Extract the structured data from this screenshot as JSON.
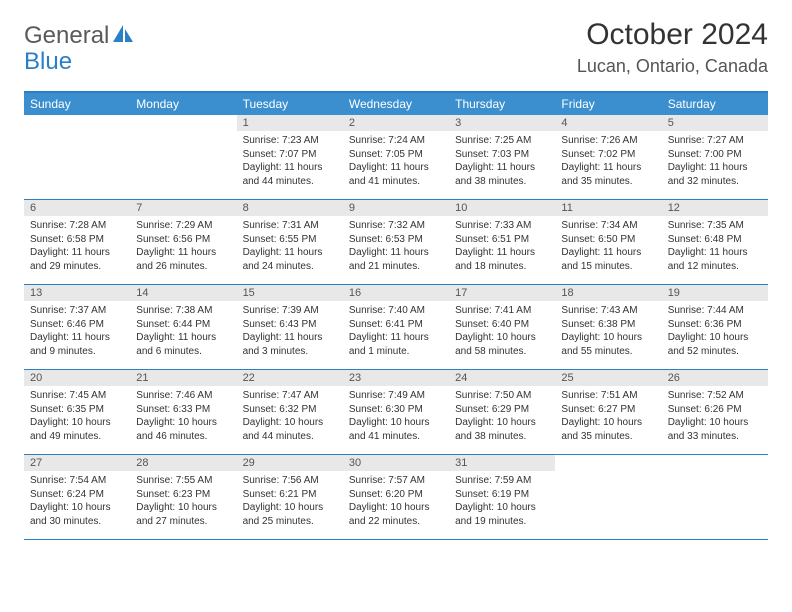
{
  "logo": {
    "text1": "General",
    "text2": "Blue"
  },
  "title": "October 2024",
  "location": "Lucan, Ontario, Canada",
  "colors": {
    "header_bg": "#3b8fcf",
    "border": "#2a7fc7",
    "daynum_bg": "#e8e8e8",
    "text": "#333333"
  },
  "day_headers": [
    "Sunday",
    "Monday",
    "Tuesday",
    "Wednesday",
    "Thursday",
    "Friday",
    "Saturday"
  ],
  "weeks": [
    [
      null,
      null,
      {
        "n": "1",
        "sr": "Sunrise: 7:23 AM",
        "ss": "Sunset: 7:07 PM",
        "d1": "Daylight: 11 hours",
        "d2": "and 44 minutes."
      },
      {
        "n": "2",
        "sr": "Sunrise: 7:24 AM",
        "ss": "Sunset: 7:05 PM",
        "d1": "Daylight: 11 hours",
        "d2": "and 41 minutes."
      },
      {
        "n": "3",
        "sr": "Sunrise: 7:25 AM",
        "ss": "Sunset: 7:03 PM",
        "d1": "Daylight: 11 hours",
        "d2": "and 38 minutes."
      },
      {
        "n": "4",
        "sr": "Sunrise: 7:26 AM",
        "ss": "Sunset: 7:02 PM",
        "d1": "Daylight: 11 hours",
        "d2": "and 35 minutes."
      },
      {
        "n": "5",
        "sr": "Sunrise: 7:27 AM",
        "ss": "Sunset: 7:00 PM",
        "d1": "Daylight: 11 hours",
        "d2": "and 32 minutes."
      }
    ],
    [
      {
        "n": "6",
        "sr": "Sunrise: 7:28 AM",
        "ss": "Sunset: 6:58 PM",
        "d1": "Daylight: 11 hours",
        "d2": "and 29 minutes."
      },
      {
        "n": "7",
        "sr": "Sunrise: 7:29 AM",
        "ss": "Sunset: 6:56 PM",
        "d1": "Daylight: 11 hours",
        "d2": "and 26 minutes."
      },
      {
        "n": "8",
        "sr": "Sunrise: 7:31 AM",
        "ss": "Sunset: 6:55 PM",
        "d1": "Daylight: 11 hours",
        "d2": "and 24 minutes."
      },
      {
        "n": "9",
        "sr": "Sunrise: 7:32 AM",
        "ss": "Sunset: 6:53 PM",
        "d1": "Daylight: 11 hours",
        "d2": "and 21 minutes."
      },
      {
        "n": "10",
        "sr": "Sunrise: 7:33 AM",
        "ss": "Sunset: 6:51 PM",
        "d1": "Daylight: 11 hours",
        "d2": "and 18 minutes."
      },
      {
        "n": "11",
        "sr": "Sunrise: 7:34 AM",
        "ss": "Sunset: 6:50 PM",
        "d1": "Daylight: 11 hours",
        "d2": "and 15 minutes."
      },
      {
        "n": "12",
        "sr": "Sunrise: 7:35 AM",
        "ss": "Sunset: 6:48 PM",
        "d1": "Daylight: 11 hours",
        "d2": "and 12 minutes."
      }
    ],
    [
      {
        "n": "13",
        "sr": "Sunrise: 7:37 AM",
        "ss": "Sunset: 6:46 PM",
        "d1": "Daylight: 11 hours",
        "d2": "and 9 minutes."
      },
      {
        "n": "14",
        "sr": "Sunrise: 7:38 AM",
        "ss": "Sunset: 6:44 PM",
        "d1": "Daylight: 11 hours",
        "d2": "and 6 minutes."
      },
      {
        "n": "15",
        "sr": "Sunrise: 7:39 AM",
        "ss": "Sunset: 6:43 PM",
        "d1": "Daylight: 11 hours",
        "d2": "and 3 minutes."
      },
      {
        "n": "16",
        "sr": "Sunrise: 7:40 AM",
        "ss": "Sunset: 6:41 PM",
        "d1": "Daylight: 11 hours",
        "d2": "and 1 minute."
      },
      {
        "n": "17",
        "sr": "Sunrise: 7:41 AM",
        "ss": "Sunset: 6:40 PM",
        "d1": "Daylight: 10 hours",
        "d2": "and 58 minutes."
      },
      {
        "n": "18",
        "sr": "Sunrise: 7:43 AM",
        "ss": "Sunset: 6:38 PM",
        "d1": "Daylight: 10 hours",
        "d2": "and 55 minutes."
      },
      {
        "n": "19",
        "sr": "Sunrise: 7:44 AM",
        "ss": "Sunset: 6:36 PM",
        "d1": "Daylight: 10 hours",
        "d2": "and 52 minutes."
      }
    ],
    [
      {
        "n": "20",
        "sr": "Sunrise: 7:45 AM",
        "ss": "Sunset: 6:35 PM",
        "d1": "Daylight: 10 hours",
        "d2": "and 49 minutes."
      },
      {
        "n": "21",
        "sr": "Sunrise: 7:46 AM",
        "ss": "Sunset: 6:33 PM",
        "d1": "Daylight: 10 hours",
        "d2": "and 46 minutes."
      },
      {
        "n": "22",
        "sr": "Sunrise: 7:47 AM",
        "ss": "Sunset: 6:32 PM",
        "d1": "Daylight: 10 hours",
        "d2": "and 44 minutes."
      },
      {
        "n": "23",
        "sr": "Sunrise: 7:49 AM",
        "ss": "Sunset: 6:30 PM",
        "d1": "Daylight: 10 hours",
        "d2": "and 41 minutes."
      },
      {
        "n": "24",
        "sr": "Sunrise: 7:50 AM",
        "ss": "Sunset: 6:29 PM",
        "d1": "Daylight: 10 hours",
        "d2": "and 38 minutes."
      },
      {
        "n": "25",
        "sr": "Sunrise: 7:51 AM",
        "ss": "Sunset: 6:27 PM",
        "d1": "Daylight: 10 hours",
        "d2": "and 35 minutes."
      },
      {
        "n": "26",
        "sr": "Sunrise: 7:52 AM",
        "ss": "Sunset: 6:26 PM",
        "d1": "Daylight: 10 hours",
        "d2": "and 33 minutes."
      }
    ],
    [
      {
        "n": "27",
        "sr": "Sunrise: 7:54 AM",
        "ss": "Sunset: 6:24 PM",
        "d1": "Daylight: 10 hours",
        "d2": "and 30 minutes."
      },
      {
        "n": "28",
        "sr": "Sunrise: 7:55 AM",
        "ss": "Sunset: 6:23 PM",
        "d1": "Daylight: 10 hours",
        "d2": "and 27 minutes."
      },
      {
        "n": "29",
        "sr": "Sunrise: 7:56 AM",
        "ss": "Sunset: 6:21 PM",
        "d1": "Daylight: 10 hours",
        "d2": "and 25 minutes."
      },
      {
        "n": "30",
        "sr": "Sunrise: 7:57 AM",
        "ss": "Sunset: 6:20 PM",
        "d1": "Daylight: 10 hours",
        "d2": "and 22 minutes."
      },
      {
        "n": "31",
        "sr": "Sunrise: 7:59 AM",
        "ss": "Sunset: 6:19 PM",
        "d1": "Daylight: 10 hours",
        "d2": "and 19 minutes."
      },
      null,
      null
    ]
  ]
}
